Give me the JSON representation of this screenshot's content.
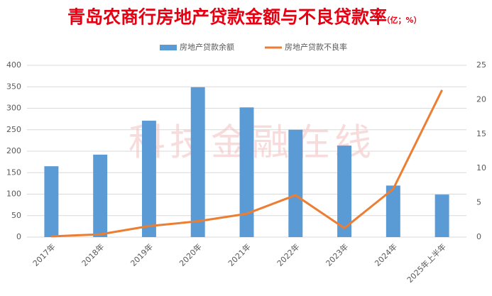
{
  "chart_data": {
    "type": "bar_line",
    "title": "青岛农商行房地产贷款金额与不良贷款率",
    "unit": "（亿；%）",
    "watermark": "科技金融在线",
    "categories": [
      "2017年",
      "2018年",
      "2019年",
      "2020年",
      "2021年",
      "2022年",
      "2023年",
      "2024年",
      "2025年上半年"
    ],
    "series": [
      {
        "name": "房地产贷款余额",
        "type": "bar",
        "color": "#5b9bd5",
        "values": [
          165,
          192,
          271,
          349,
          302,
          250,
          213,
          120,
          99
        ]
      },
      {
        "name": "房地产贷款不良率",
        "type": "line",
        "axis": "y2",
        "color": "#ed7d31",
        "values": [
          0.1,
          0.4,
          1.6,
          2.3,
          3.4,
          6.1,
          1.3,
          7.0,
          21.4
        ]
      }
    ],
    "ylim": [
      0,
      400
    ],
    "yticks": [
      0,
      50,
      100,
      150,
      200,
      250,
      300,
      350,
      400
    ],
    "y2lim": [
      0,
      25
    ],
    "y2ticks": [
      0,
      5,
      10,
      15,
      20,
      25
    ],
    "grid": true,
    "legend": "top"
  }
}
